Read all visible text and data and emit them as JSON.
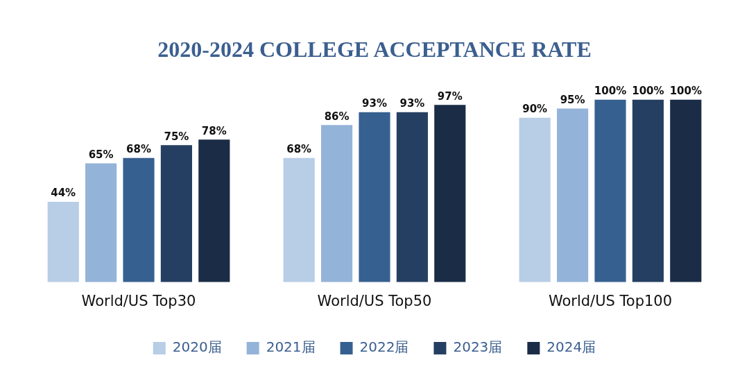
{
  "chart_data": {
    "type": "bar",
    "title": "2020-2024 COLLEGE ACCEPTANCE RATE",
    "categories": [
      "World/US Top30",
      "World/US Top50",
      "World/US Top100"
    ],
    "series": [
      {
        "name": "2020届",
        "color": "#b8cde6",
        "values": [
          44,
          68,
          90
        ],
        "value_labels": [
          "44%",
          "68%",
          "90%"
        ]
      },
      {
        "name": "2021届",
        "color": "#94b3d8",
        "values": [
          65,
          86,
          95
        ],
        "value_labels": [
          "65%",
          "86%",
          "95%"
        ]
      },
      {
        "name": "2022届",
        "color": "#36608f",
        "values": [
          68,
          93,
          100
        ],
        "value_labels": [
          "68%",
          "93%",
          "100%"
        ]
      },
      {
        "name": "2023届",
        "color": "#253f62",
        "values": [
          75,
          93,
          100
        ],
        "value_labels": [
          "75%",
          "93%",
          "100%"
        ]
      },
      {
        "name": "2024届",
        "color": "#1a2c46",
        "values": [
          78,
          97,
          100
        ],
        "value_labels": [
          "78%",
          "97%",
          "100%"
        ]
      }
    ],
    "tick_labels": "x",
    "grid": false,
    "legend": "bottom"
  }
}
